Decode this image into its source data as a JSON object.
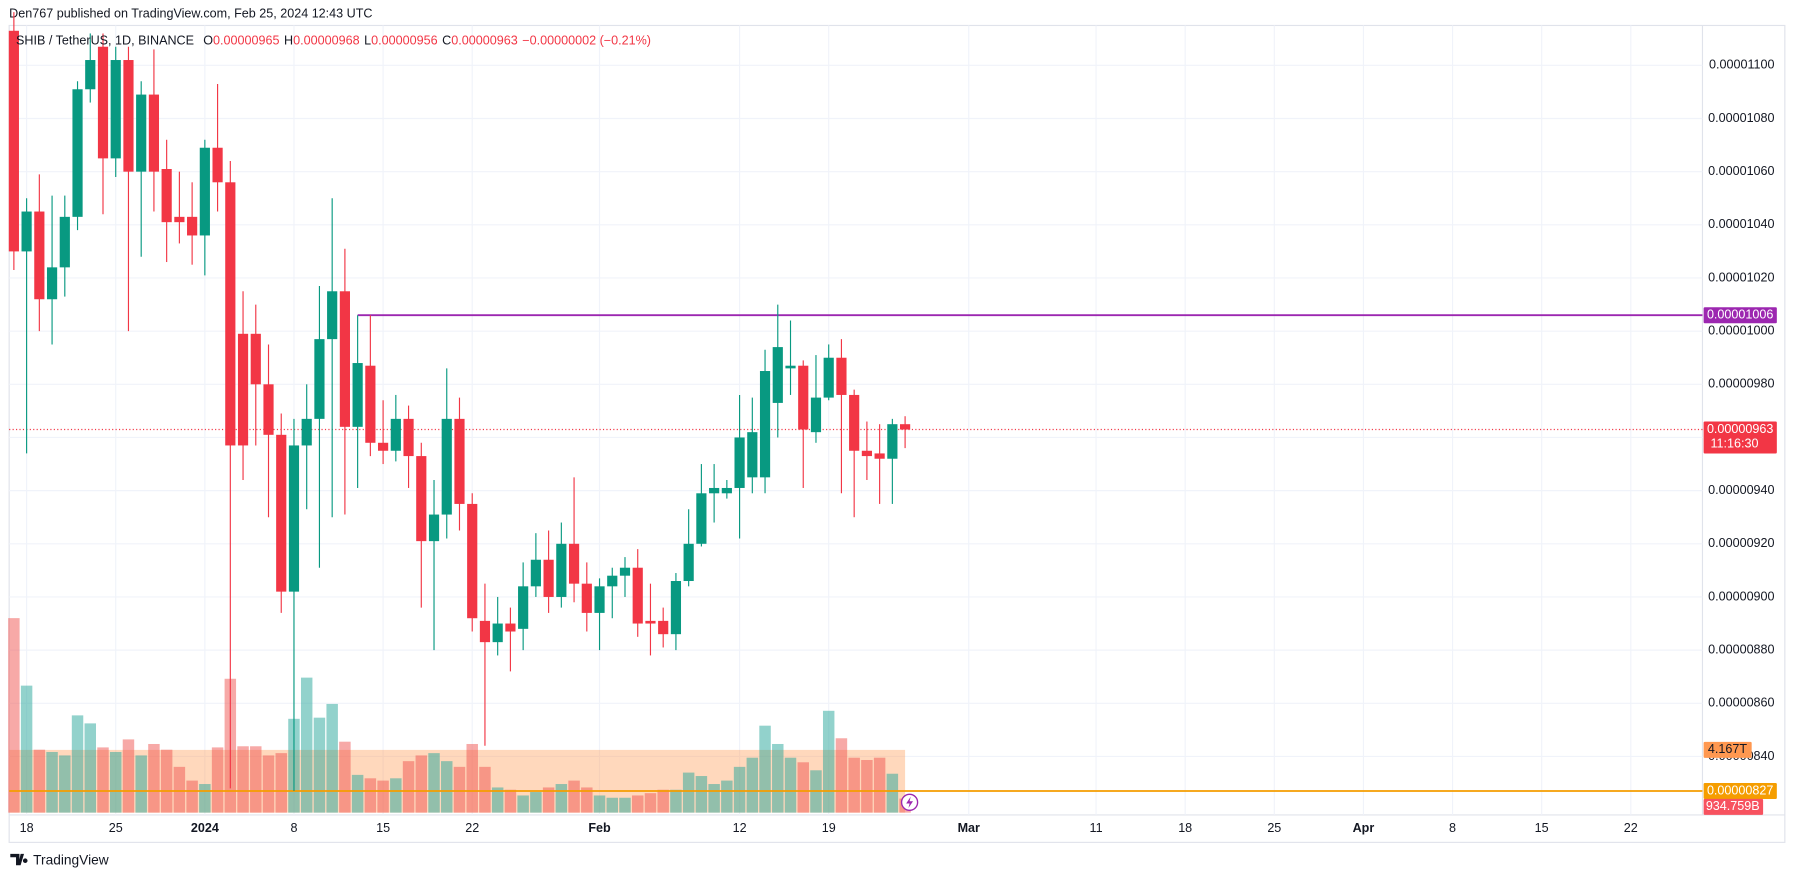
{
  "header": {
    "publisher": "Den767 published on TradingView.com, Feb 25, 2024 12:43 UTC",
    "brand": "TradingView"
  },
  "chart_data": {
    "type": "candlestick",
    "symbol": "SHIB / TetherUS, 1D, BINANCE",
    "ohlc_legend": [
      {
        "key": "O",
        "text": "0.00000965"
      },
      {
        "key": "H",
        "text": "0.00000968"
      },
      {
        "key": "L",
        "text": "0.00000956"
      },
      {
        "key": "C",
        "text": "0.00000963"
      }
    ],
    "change": "−0.00000002 (−0.21%)",
    "x": [
      "2023-12-17",
      "2023-12-18",
      "2023-12-19",
      "2023-12-20",
      "2023-12-21",
      "2023-12-22",
      "2023-12-23",
      "2023-12-24",
      "2023-12-25",
      "2023-12-26",
      "2023-12-27",
      "2023-12-28",
      "2023-12-29",
      "2023-12-30",
      "2023-12-31",
      "2024-01-01",
      "2024-01-02",
      "2024-01-03",
      "2024-01-04",
      "2024-01-05",
      "2024-01-06",
      "2024-01-07",
      "2024-01-08",
      "2024-01-09",
      "2024-01-10",
      "2024-01-11",
      "2024-01-12",
      "2024-01-13",
      "2024-01-14",
      "2024-01-15",
      "2024-01-16",
      "2024-01-17",
      "2024-01-18",
      "2024-01-19",
      "2024-01-20",
      "2024-01-21",
      "2024-01-22",
      "2024-01-23",
      "2024-01-24",
      "2024-01-25",
      "2024-01-26",
      "2024-01-27",
      "2024-01-28",
      "2024-01-29",
      "2024-01-30",
      "2024-01-31",
      "2024-02-01",
      "2024-02-02",
      "2024-02-03",
      "2024-02-04",
      "2024-02-05",
      "2024-02-06",
      "2024-02-07",
      "2024-02-08",
      "2024-02-09",
      "2024-02-10",
      "2024-02-11",
      "2024-02-12",
      "2024-02-13",
      "2024-02-14",
      "2024-02-15",
      "2024-02-16",
      "2024-02-17",
      "2024-02-18",
      "2024-02-19",
      "2024-02-20",
      "2024-02-21",
      "2024-02-22",
      "2024-02-23",
      "2024-02-24",
      "2024-02-25"
    ],
    "open": [
      1.113e-05,
      1.03e-05,
      1.045e-05,
      1.012e-05,
      1.024e-05,
      1.043e-05,
      1.091e-05,
      1.107e-05,
      1.065e-05,
      1.102e-05,
      1.06e-05,
      1.089e-05,
      1.061e-05,
      1.043e-05,
      1.043e-05,
      1.036e-05,
      1.069e-05,
      1.056e-05,
      9.99e-06,
      9.99e-06,
      9.8e-06,
      9.61e-06,
      9.02e-06,
      9.57e-06,
      9.67e-06,
      9.97e-06,
      1.015e-05,
      9.64e-06,
      9.87e-06,
      9.58e-06,
      9.55e-06,
      9.67e-06,
      9.53e-06,
      9.21e-06,
      9.31e-06,
      9.67e-06,
      9.35e-06,
      8.91e-06,
      8.83e-06,
      8.9e-06,
      8.88e-06,
      9.04e-06,
      9.14e-06,
      9e-06,
      9.2e-06,
      9.05e-06,
      8.94e-06,
      9.04e-06,
      9.08e-06,
      9.11e-06,
      8.91e-06,
      8.91e-06,
      8.86e-06,
      9.06e-06,
      9.2e-06,
      9.39e-06,
      9.39e-06,
      9.41e-06,
      9.45e-06,
      9.45e-06,
      9.73e-06,
      9.86e-06,
      9.87e-06,
      9.62e-06,
      9.75e-06,
      9.9e-06,
      9.76e-06,
      9.55e-06,
      9.54e-06,
      9.52e-06,
      9.65e-06
    ],
    "high": [
      1.12e-05,
      1.05e-05,
      1.059e-05,
      1.051e-05,
      1.051e-05,
      1.094e-05,
      1.112e-05,
      1.112e-05,
      1.107e-05,
      1.107e-05,
      1.094e-05,
      1.106e-05,
      1.072e-05,
      1.06e-05,
      1.056e-05,
      1.072e-05,
      1.093e-05,
      1.064e-05,
      1.015e-05,
      1.01e-05,
      9.95e-06,
      9.69e-06,
      9.67e-06,
      9.8e-06,
      1.017e-05,
      1.05e-05,
      1.031e-05,
      1.006e-05,
      1.006e-05,
      9.74e-06,
      9.76e-06,
      9.72e-06,
      9.58e-06,
      9.44e-06,
      9.86e-06,
      9.75e-06,
      9.39e-06,
      9.05e-06,
      9e-06,
      8.96e-06,
      9.13e-06,
      9.24e-06,
      9.25e-06,
      9.28e-06,
      9.45e-06,
      9.13e-06,
      9.07e-06,
      9.11e-06,
      9.15e-06,
      9.18e-06,
      9.05e-06,
      8.96e-06,
      9.09e-06,
      9.33e-06,
      9.5e-06,
      9.5e-06,
      9.44e-06,
      9.76e-06,
      9.75e-06,
      9.93e-06,
      1.01e-05,
      1.004e-05,
      9.89e-06,
      9.91e-06,
      9.95e-06,
      9.97e-06,
      9.78e-06,
      9.66e-06,
      9.65e-06,
      9.67e-06,
      9.68e-06
    ],
    "low": [
      1.023e-05,
      9.54e-06,
      1e-05,
      9.95e-06,
      1.013e-05,
      1.038e-05,
      1.086e-05,
      1.044e-05,
      1.058e-05,
      1e-05,
      1.028e-05,
      1.045e-05,
      1.026e-05,
      1.033e-05,
      1.025e-05,
      1.021e-05,
      1.045e-05,
      8.28e-06,
      9.44e-06,
      9.57e-06,
      9.3e-06,
      8.94e-06,
      8.27e-06,
      9.33e-06,
      9.11e-06,
      9.3e-06,
      9.31e-06,
      9.41e-06,
      9.53e-06,
      9.5e-06,
      9.51e-06,
      9.41e-06,
      8.96e-06,
      8.8e-06,
      9.22e-06,
      9.25e-06,
      8.87e-06,
      8.44e-06,
      8.78e-06,
      8.72e-06,
      8.8e-06,
      9e-06,
      8.94e-06,
      8.96e-06,
      8.98e-06,
      8.87e-06,
      8.8e-06,
      8.92e-06,
      9e-06,
      8.85e-06,
      8.78e-06,
      8.81e-06,
      8.8e-06,
      9.04e-06,
      9.19e-06,
      9.28e-06,
      9.37e-06,
      9.22e-06,
      9.39e-06,
      9.39e-06,
      9.6e-06,
      9.76e-06,
      9.41e-06,
      9.58e-06,
      9.74e-06,
      9.39e-06,
      9.3e-06,
      9.44e-06,
      9.35e-06,
      9.35e-06,
      9.56e-06
    ],
    "close": [
      1.03e-05,
      1.045e-05,
      1.012e-05,
      1.024e-05,
      1.043e-05,
      1.091e-05,
      1.102e-05,
      1.065e-05,
      1.102e-05,
      1.06e-05,
      1.089e-05,
      1.06e-05,
      1.041e-05,
      1.041e-05,
      1.036e-05,
      1.069e-05,
      1.056e-05,
      9.57e-06,
      9.57e-06,
      9.8e-06,
      9.61e-06,
      9.02e-06,
      9.57e-06,
      9.67e-06,
      9.97e-06,
      1.015e-05,
      9.64e-06,
      9.88e-06,
      9.58e-06,
      9.55e-06,
      9.67e-06,
      9.53e-06,
      9.21e-06,
      9.31e-06,
      9.67e-06,
      9.35e-06,
      8.92e-06,
      8.83e-06,
      8.9e-06,
      8.87e-06,
      9.04e-06,
      9.14e-06,
      9e-06,
      9.2e-06,
      9.05e-06,
      8.94e-06,
      9.04e-06,
      9.08e-06,
      9.11e-06,
      8.9e-06,
      8.9e-06,
      8.86e-06,
      9.06e-06,
      9.2e-06,
      9.39e-06,
      9.41e-06,
      9.41e-06,
      9.6e-06,
      9.62e-06,
      9.85e-06,
      9.94e-06,
      9.87e-06,
      9.63e-06,
      9.75e-06,
      9.9e-06,
      9.76e-06,
      9.55e-06,
      9.53e-06,
      9.52e-06,
      9.65e-06,
      9.63e-06
    ],
    "volume": [
      12920,
      8436,
      4180,
      4028,
      3800,
      6460,
      5928,
      4332,
      4028,
      4864,
      3800,
      4560,
      4180,
      3040,
      2128,
      1900,
      4332,
      8892,
      4408,
      4408,
      3800,
      3952,
      6232,
      8968,
      6308,
      7220,
      4712,
      2508,
      2280,
      2128,
      2280,
      3420,
      3800,
      3952,
      3420,
      3040,
      4560,
      3040,
      1672,
      1520,
      1140,
      1368,
      1672,
      1900,
      2128,
      1672,
      1140,
      988,
      988,
      1140,
      1292,
      1520,
      1520,
      2660,
      2432,
      1900,
      2128,
      3040,
      3648,
      5776,
      4560,
      3648,
      3344,
      2812,
      6764,
      4940,
      3648,
      3496,
      3648,
      2584,
      934.759
    ],
    "volume_last_label": "934.759B",
    "volume_ma": {
      "value": 4167,
      "label": "4.167T"
    },
    "up_color": "#089981",
    "down_color": "#f23645",
    "xlim": [
      "2023-12-16",
      "2024-04-27"
    ],
    "xticks": [
      {
        "value": "2023-12-18",
        "label": "18"
      },
      {
        "value": "2023-12-25",
        "label": "25"
      },
      {
        "value": "2024-01-01",
        "label": "2024"
      },
      {
        "value": "2024-01-08",
        "label": "8"
      },
      {
        "value": "2024-01-15",
        "label": "15"
      },
      {
        "value": "2024-01-22",
        "label": "22"
      },
      {
        "value": "2024-02-01",
        "label": "Feb"
      },
      {
        "value": "2024-02-12",
        "label": "12"
      },
      {
        "value": "2024-02-19",
        "label": "19"
      },
      {
        "value": "2024-03-01",
        "label": "Mar"
      },
      {
        "value": "2024-03-11",
        "label": "11"
      },
      {
        "value": "2024-03-18",
        "label": "18"
      },
      {
        "value": "2024-03-25",
        "label": "25"
      },
      {
        "value": "2024-04-01",
        "label": "Apr"
      },
      {
        "value": "2024-04-08",
        "label": "8"
      },
      {
        "value": "2024-04-15",
        "label": "15"
      },
      {
        "value": "2024-04-22",
        "label": "22"
      }
    ],
    "ylim": [
      8.18e-06,
      1.115e-05
    ],
    "yticks": [
      {
        "value": 8.4e-06,
        "label": "0.00000840"
      },
      {
        "value": 8.6e-06,
        "label": "0.00000860"
      },
      {
        "value": 8.8e-06,
        "label": "0.00000880"
      },
      {
        "value": 9e-06,
        "label": "0.00000900"
      },
      {
        "value": 9.2e-06,
        "label": "0.00000920"
      },
      {
        "value": 9.4e-06,
        "label": "0.00000940"
      },
      {
        "value": 9.6e-06,
        "label": "0.00000960"
      },
      {
        "value": 9.8e-06,
        "label": "0.00000980"
      },
      {
        "value": 1e-05,
        "label": "0.00001000"
      },
      {
        "value": 1.02e-05,
        "label": "0.00001020"
      },
      {
        "value": 1.04e-05,
        "label": "0.00001040"
      },
      {
        "value": 1.06e-05,
        "label": "0.00001060"
      },
      {
        "value": 1.08e-05,
        "label": "0.00001080"
      },
      {
        "value": 1.1e-05,
        "label": "0.00001100"
      }
    ],
    "grid": true,
    "hlines": [
      {
        "value": 1.006e-05,
        "label": "0.00001006",
        "color": "#9c27b0",
        "start": "2024-01-13"
      },
      {
        "value": 9.63e-06,
        "label": "0.00000963",
        "color": "#f23645",
        "dotted": true,
        "countdown": "11:16:30"
      },
      {
        "value": 8.27e-06,
        "label": "0.00000827",
        "color": "#f59d00"
      }
    ]
  }
}
